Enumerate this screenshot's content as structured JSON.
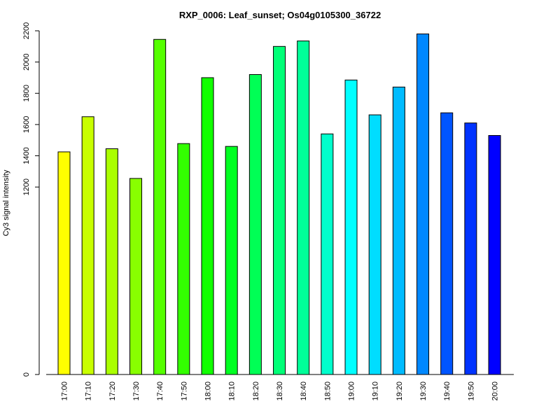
{
  "chart_data": {
    "type": "bar",
    "title": "RXP_0006: Leaf_sunset; Os04g0105300_36722",
    "xlabel": "",
    "ylabel": "Cy3 signal intensity",
    "categories": [
      "17:00",
      "17:10",
      "17:20",
      "17:30",
      "17:40",
      "17:50",
      "18:00",
      "18:10",
      "18:20",
      "18:30",
      "18:40",
      "18:50",
      "19:00",
      "19:10",
      "19:20",
      "19:30",
      "19:40",
      "19:50",
      "20:00"
    ],
    "values": [
      1425,
      1650,
      1445,
      1255,
      2145,
      1478,
      1900,
      1460,
      1920,
      2100,
      2135,
      1540,
      1885,
      1662,
      1840,
      2180,
      1675,
      1610,
      1530
    ],
    "colors": [
      "#ffff00",
      "#c8ff00",
      "#aaff00",
      "#88ff00",
      "#55ff00",
      "#33ff00",
      "#11ff00",
      "#00ff22",
      "#00ff55",
      "#00ff77",
      "#00ff99",
      "#00ffcc",
      "#00ffff",
      "#00ddff",
      "#00bbff",
      "#0088ff",
      "#0055ff",
      "#0033ff",
      "#0000ff"
    ],
    "yticks": [
      0,
      1200,
      1400,
      1600,
      1800,
      2000,
      2200
    ],
    "ylim": [
      0,
      2200
    ],
    "grid": false,
    "legend": "none"
  }
}
